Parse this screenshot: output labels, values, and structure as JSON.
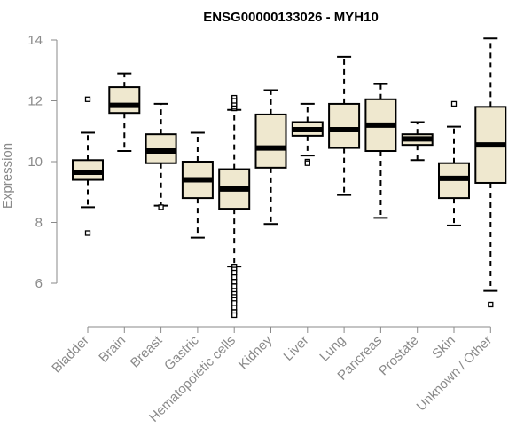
{
  "chart_data": {
    "type": "boxplot",
    "title": "ENSG00000133026 - MYH10",
    "ylabel": "Expression",
    "xlabel": "",
    "ylim": [
      4.7,
      14.3
    ],
    "yticks": [
      6,
      8,
      10,
      12,
      14
    ],
    "grid": false,
    "colors": {
      "box_fill": "#efe8cf",
      "outline": "#000000",
      "median": "#000000",
      "axis": "#8a8a8a"
    },
    "categories": [
      "Bladder",
      "Brain",
      "Breast",
      "Gastric",
      "Hematopoietic cells",
      "Kidney",
      "Liver",
      "Lung",
      "Pancreas",
      "Prostate",
      "Skin",
      "Unknown / Other"
    ],
    "boxes": [
      {
        "whisker_low": 8.5,
        "q1": 9.4,
        "median": 9.65,
        "q3": 10.05,
        "whisker_high": 10.95,
        "outliers": [
          12.05,
          7.65
        ]
      },
      {
        "whisker_low": 10.35,
        "q1": 11.6,
        "median": 11.85,
        "q3": 12.45,
        "whisker_high": 12.9,
        "outliers": []
      },
      {
        "whisker_low": 8.55,
        "q1": 9.95,
        "median": 10.35,
        "q3": 10.9,
        "whisker_high": 11.9,
        "outliers": [
          8.5
        ]
      },
      {
        "whisker_low": 7.5,
        "q1": 8.8,
        "median": 9.4,
        "q3": 10.0,
        "whisker_high": 10.95,
        "outliers": []
      },
      {
        "whisker_low": 6.55,
        "q1": 8.45,
        "median": 9.1,
        "q3": 9.75,
        "whisker_high": 11.7,
        "outliers": [
          11.75,
          11.85,
          11.95,
          12.05,
          12.1,
          11.8,
          11.9,
          12.0,
          6.55,
          6.45,
          6.35,
          6.2,
          6.05,
          5.9,
          5.75,
          5.65,
          5.55,
          5.45,
          5.35,
          5.2,
          5.05,
          4.95
        ]
      },
      {
        "whisker_low": 7.95,
        "q1": 9.8,
        "median": 10.45,
        "q3": 11.55,
        "whisker_high": 12.35,
        "outliers": []
      },
      {
        "whisker_low": 10.2,
        "q1": 10.85,
        "median": 11.05,
        "q3": 11.3,
        "whisker_high": 11.9,
        "outliers": [
          10.0,
          9.95
        ]
      },
      {
        "whisker_low": 8.9,
        "q1": 10.45,
        "median": 11.05,
        "q3": 11.9,
        "whisker_high": 13.45,
        "outliers": []
      },
      {
        "whisker_low": 8.15,
        "q1": 10.35,
        "median": 11.2,
        "q3": 12.05,
        "whisker_high": 12.55,
        "outliers": []
      },
      {
        "whisker_low": 10.05,
        "q1": 10.55,
        "median": 10.75,
        "q3": 10.9,
        "whisker_high": 11.3,
        "outliers": []
      },
      {
        "whisker_low": 7.9,
        "q1": 8.8,
        "median": 9.45,
        "q3": 9.95,
        "whisker_high": 11.15,
        "outliers": [
          11.9
        ]
      },
      {
        "whisker_low": 5.75,
        "q1": 9.3,
        "median": 10.55,
        "q3": 11.8,
        "whisker_high": 14.05,
        "outliers": [
          5.3
        ]
      }
    ]
  }
}
